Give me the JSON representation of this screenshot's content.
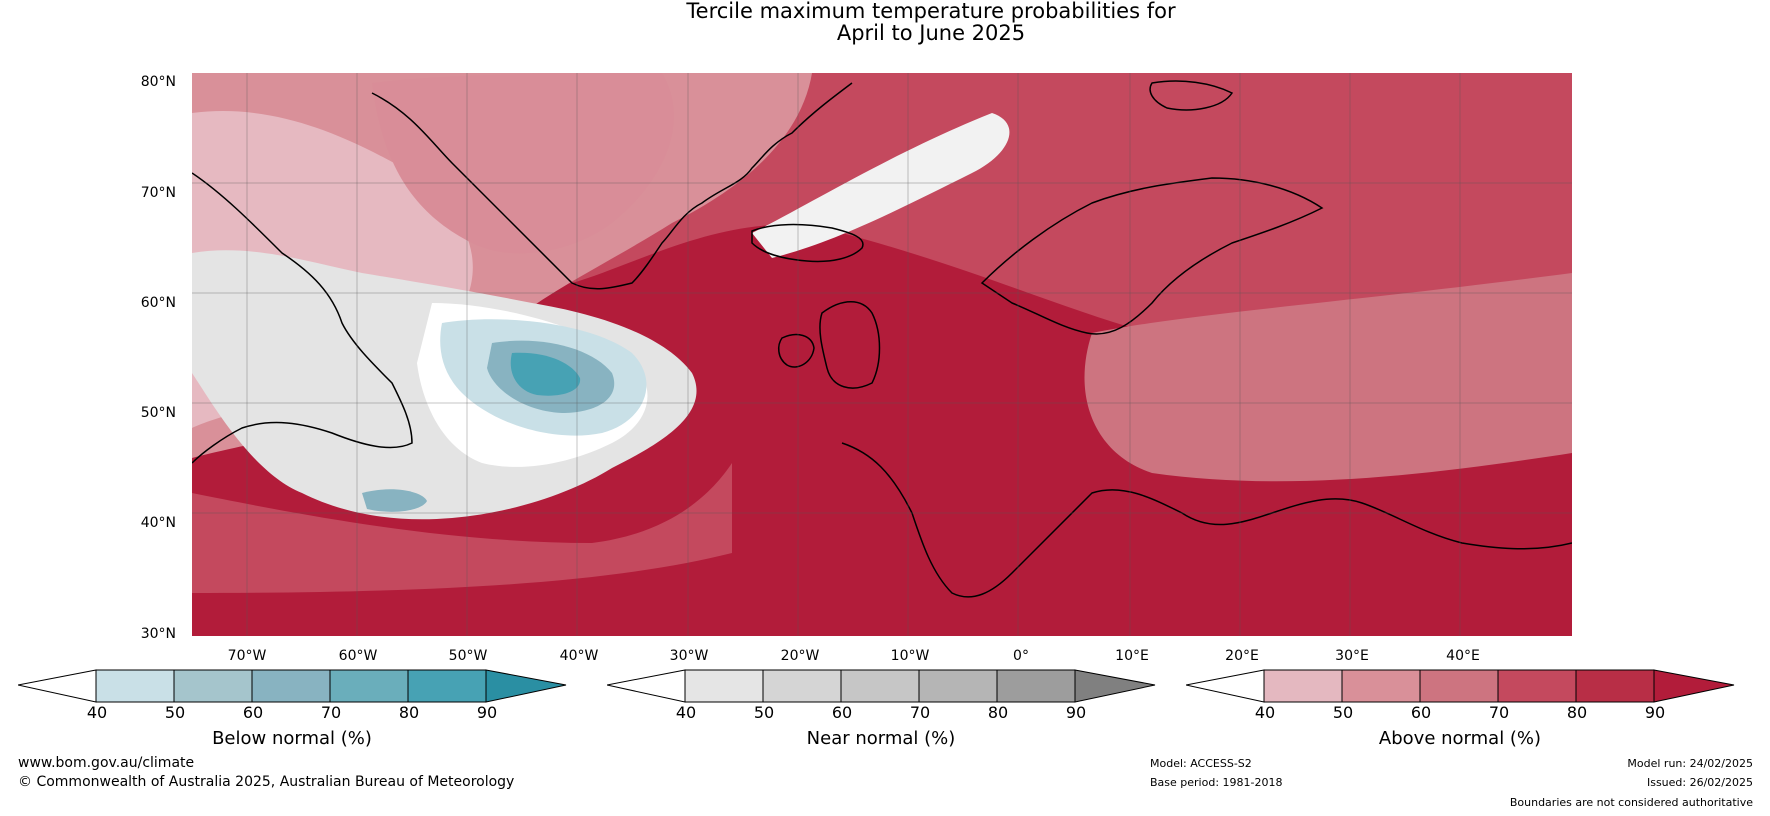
{
  "title": {
    "line1": "Tercile maximum temperature probabilities for",
    "line2": "April to June 2025"
  },
  "map": {
    "lat_labels": [
      "80°N",
      "70°N",
      "60°N",
      "50°N",
      "40°N",
      "30°N"
    ],
    "lon_labels": [
      "70°W",
      "60°W",
      "50°W",
      "40°W",
      "30°W",
      "20°W",
      "10°W",
      "0°",
      "10°E",
      "20°E",
      "30°E",
      "40°E"
    ],
    "colors": {
      "above_dominant": "#b21c3a",
      "ocean_pink": "#d98d98",
      "light_pink": "#e6b9c1",
      "near_normal_grey": "#e4e4e4",
      "below_blue": "#4aa2b4",
      "coastline": "#000000",
      "borders": "#808080"
    }
  },
  "colorbars": [
    {
      "label": "Below normal (%)",
      "ticks": [
        "40",
        "50",
        "60",
        "70",
        "80",
        "90"
      ],
      "colors": [
        "#ffffff",
        "#c9e0e7",
        "#a5c5cc",
        "#88b3c1",
        "#6aaebb",
        "#47a2b4",
        "#2a8fa3"
      ]
    },
    {
      "label": "Near normal (%)",
      "ticks": [
        "40",
        "50",
        "60",
        "70",
        "80",
        "90"
      ],
      "colors": [
        "#ffffff",
        "#e5e5e5",
        "#d5d5d5",
        "#c6c6c6",
        "#b5b5b5",
        "#9d9d9d",
        "#808080"
      ]
    },
    {
      "label": "Above normal (%)",
      "ticks": [
        "40",
        "50",
        "60",
        "70",
        "80",
        "90"
      ],
      "colors": [
        "#ffffff",
        "#e4b8c0",
        "#d99099",
        "#cd7480",
        "#c4495e",
        "#b82e46",
        "#b21c3a"
      ]
    }
  ],
  "footer": {
    "website": "www.bom.gov.au/climate",
    "copyright": "© Commonwealth of Australia 2025, Australian Bureau of Meteorology",
    "model": "Model: ACCESS-S2",
    "base_period": "Base period: 1981-2018",
    "model_run": "Model run: 24/02/2025",
    "issued": "Issued: 26/02/2025",
    "disclaimer": "Boundaries are not considered authoritative"
  }
}
